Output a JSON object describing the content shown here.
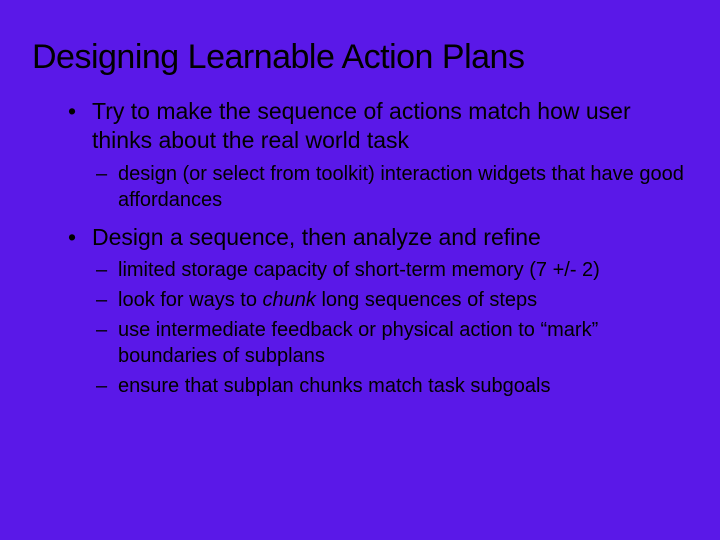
{
  "slide": {
    "background_color": "#5a18e8",
    "text_color": "#000000",
    "font_family": "Verdana, Geneva, sans-serif",
    "title": "Designing Learnable Action Plans",
    "title_fontsize": 34,
    "bullets": [
      {
        "text": "Try to make the sequence of actions match how user thinks about the real world task",
        "fontsize": 23,
        "sub": [
          {
            "text": "design (or select from toolkit) interaction widgets that have good affordances",
            "fontsize": 20
          }
        ]
      },
      {
        "text": "Design a sequence, then analyze and refine",
        "fontsize": 23,
        "sub": [
          {
            "text": "limited storage capacity of short-term memory (7 +/- 2)",
            "fontsize": 20
          },
          {
            "text_html": "look for ways to <span class=\"chunk\">chunk</span> long sequences of steps",
            "text": "look for ways to chunk long sequences of steps",
            "fontsize": 20
          },
          {
            "text": "use intermediate feedback or physical action to “mark” boundaries of subplans",
            "fontsize": 20
          },
          {
            "text": "ensure that subplan chunks match task subgoals",
            "fontsize": 20
          }
        ]
      }
    ]
  }
}
